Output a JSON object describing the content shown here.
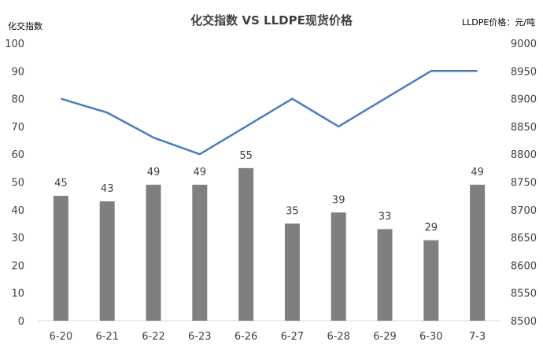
{
  "chart_data": {
    "type": "bar+line",
    "title": "化交指数 VS LLDPE现货价格",
    "left_axis_title": "化交指数",
    "right_axis_title": "LLDPE价格：元/吨",
    "categories": [
      "6-20",
      "6-21",
      "6-22",
      "6-23",
      "6-26",
      "6-27",
      "6-28",
      "6-29",
      "6-30",
      "7-3"
    ],
    "bar_series": {
      "axis": "left",
      "color": "#7f7f7f",
      "values": [
        45,
        43,
        49,
        49,
        55,
        35,
        39,
        33,
        29,
        49
      ]
    },
    "line_series": {
      "axis": "right",
      "color": "#4a7ebb",
      "values": [
        8900,
        8875,
        8830,
        8800,
        8850,
        8900,
        8850,
        8900,
        8950,
        8950
      ]
    },
    "left_axis": {
      "min": 0,
      "max": 100,
      "step": 10,
      "ticks": [
        "0",
        "10",
        "20",
        "30",
        "40",
        "50",
        "60",
        "70",
        "80",
        "90",
        "100"
      ]
    },
    "right_axis": {
      "min": 8500,
      "max": 9000,
      "step": 50,
      "ticks": [
        "8500",
        "8550",
        "8600",
        "8650",
        "8700",
        "8750",
        "8800",
        "8850",
        "8900",
        "8950",
        "9000"
      ]
    },
    "grid": false,
    "legend": "none",
    "data_labels": "bars"
  }
}
